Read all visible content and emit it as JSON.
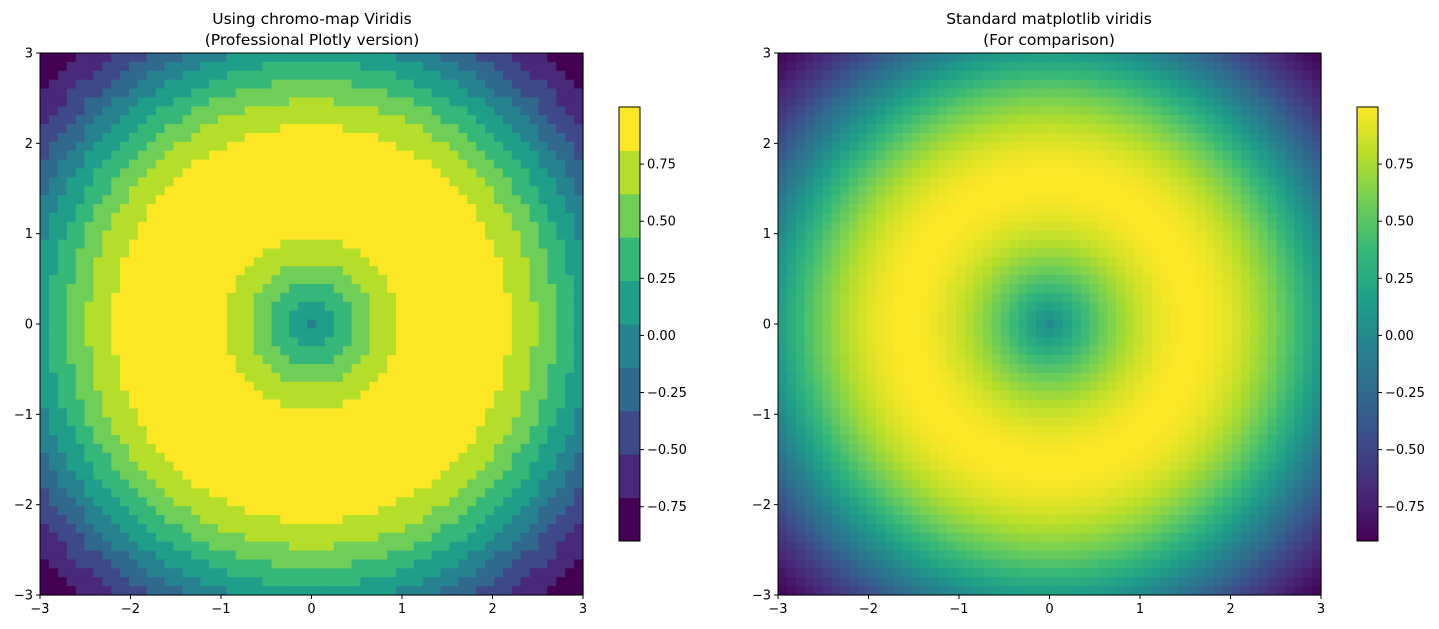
{
  "chart_data": [
    {
      "type": "heatmap",
      "title": "Using chromo-map Viridis",
      "subtitle": "(Professional Plotly version)",
      "function": "sin(sqrt(x^2 + y^2))",
      "xlim": [
        -3,
        3
      ],
      "ylim": [
        -3,
        3
      ],
      "x_ticks": [
        -3,
        -2,
        -1,
        0,
        1,
        2,
        3
      ],
      "y_ticks": [
        -3,
        -2,
        -1,
        0,
        1,
        2,
        3
      ],
      "grid_resolution": 61,
      "colormap": "viridis",
      "discrete_levels": 10,
      "colorbar": {
        "range": [
          -0.9,
          1.0
        ],
        "ticks": [
          -0.75,
          -0.5,
          -0.25,
          0.0,
          0.25,
          0.5,
          0.75
        ],
        "tick_labels": [
          "−0.75",
          "−0.50",
          "−0.25",
          "0.00",
          "0.25",
          "0.50",
          "0.75"
        ],
        "discrete": true
      }
    },
    {
      "type": "heatmap",
      "title": "Standard matplotlib viridis",
      "subtitle": "(For comparison)",
      "function": "sin(sqrt(x^2 + y^2))",
      "xlim": [
        -3,
        3
      ],
      "ylim": [
        -3,
        3
      ],
      "x_ticks": [
        -3,
        -2,
        -1,
        0,
        1,
        2,
        3
      ],
      "y_ticks": [
        -3,
        -2,
        -1,
        0,
        1,
        2,
        3
      ],
      "grid_resolution": 61,
      "colormap": "viridis",
      "discrete_levels": 0,
      "colorbar": {
        "range": [
          -0.9,
          1.0
        ],
        "ticks": [
          -0.75,
          -0.5,
          -0.25,
          0.0,
          0.25,
          0.5,
          0.75
        ],
        "tick_labels": [
          "−0.75",
          "−0.50",
          "−0.25",
          "0.00",
          "0.25",
          "0.50",
          "0.75"
        ],
        "discrete": false
      }
    }
  ],
  "colors": {
    "viridis_stops": [
      "#440154",
      "#482878",
      "#3e4989",
      "#31688e",
      "#26828e",
      "#1f9e89",
      "#35b779",
      "#6ece58",
      "#b5de2b",
      "#fde725"
    ]
  }
}
